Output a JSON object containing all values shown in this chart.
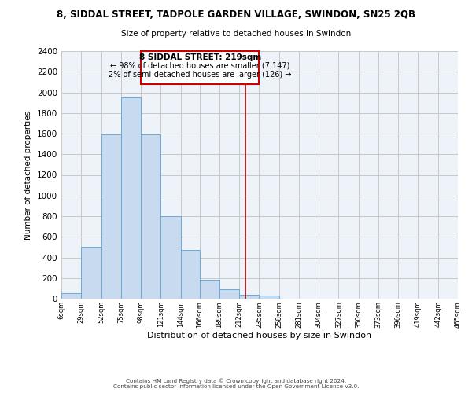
{
  "title": "8, SIDDAL STREET, TADPOLE GARDEN VILLAGE, SWINDON, SN25 2QB",
  "subtitle": "Size of property relative to detached houses in Swindon",
  "xlabel": "Distribution of detached houses by size in Swindon",
  "ylabel": "Number of detached properties",
  "bar_color": "#c8daf0",
  "bar_edge_color": "#6aaad4",
  "plot_bg_color": "#eef3fa",
  "bin_edges": [
    6,
    29,
    52,
    75,
    98,
    121,
    144,
    166,
    189,
    212,
    235,
    258,
    281,
    304,
    327,
    350,
    373,
    396,
    419,
    442,
    465
  ],
  "bar_heights": [
    50,
    500,
    1590,
    1950,
    1590,
    800,
    470,
    185,
    95,
    35,
    28,
    0,
    0,
    0,
    0,
    0,
    0,
    0,
    0,
    0
  ],
  "tick_labels": [
    "6sqm",
    "29sqm",
    "52sqm",
    "75sqm",
    "98sqm",
    "121sqm",
    "144sqm",
    "166sqm",
    "189sqm",
    "212sqm",
    "235sqm",
    "258sqm",
    "281sqm",
    "304sqm",
    "327sqm",
    "350sqm",
    "373sqm",
    "396sqm",
    "419sqm",
    "442sqm",
    "465sqm"
  ],
  "property_line_x": 219,
  "annotation_title": "8 SIDDAL STREET: 219sqm",
  "annotation_line1": "← 98% of detached houses are smaller (7,147)",
  "annotation_line2": "2% of semi-detached houses are larger (126) →",
  "annotation_box_color": "#ffffff",
  "annotation_box_edge": "#cc0000",
  "property_line_color": "#aa0000",
  "ylim": [
    0,
    2400
  ],
  "yticks": [
    0,
    200,
    400,
    600,
    800,
    1000,
    1200,
    1400,
    1600,
    1800,
    2000,
    2200,
    2400
  ],
  "footer_line1": "Contains HM Land Registry data © Crown copyright and database right 2024.",
  "footer_line2": "Contains public sector information licensed under the Open Government Licence v3.0.",
  "background_color": "#ffffff",
  "grid_color": "#c8c8c8"
}
